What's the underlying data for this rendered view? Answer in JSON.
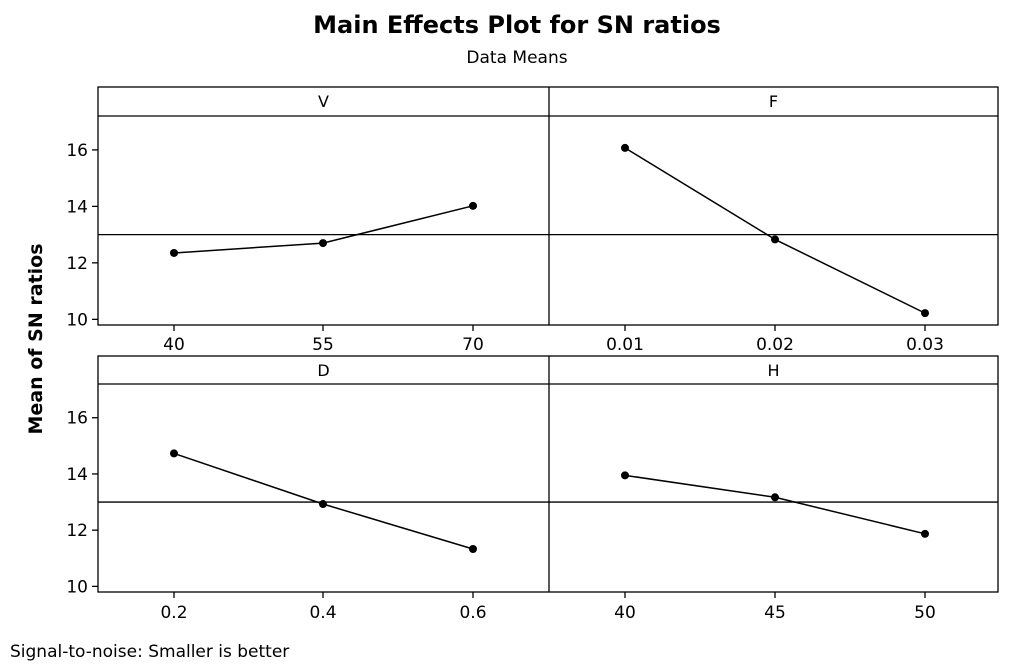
{
  "chart_data": {
    "type": "line",
    "title": "Main Effects Plot for SN ratios",
    "subtitle": "Data Means",
    "ylabel": "Mean of SN ratios",
    "footnote": "Signal-to-noise: Smaller is better",
    "ylim": [
      9.8,
      17.2
    ],
    "yticks": [
      10,
      12,
      14,
      16
    ],
    "reference_line": 13.0,
    "grid": false,
    "marker": "filled-circle",
    "line_color": "#000000",
    "series": [
      {
        "name": "V",
        "categories": [
          "40",
          "55",
          "70"
        ],
        "values": [
          12.35,
          12.7,
          14.02
        ]
      },
      {
        "name": "F",
        "categories": [
          "0.01",
          "0.02",
          "0.03"
        ],
        "values": [
          16.07,
          12.83,
          10.22
        ]
      },
      {
        "name": "D",
        "categories": [
          "0.2",
          "0.4",
          "0.6"
        ],
        "values": [
          14.73,
          12.93,
          11.33
        ]
      },
      {
        "name": "H",
        "categories": [
          "40",
          "45",
          "50"
        ],
        "values": [
          13.95,
          13.17,
          11.87
        ]
      }
    ]
  }
}
